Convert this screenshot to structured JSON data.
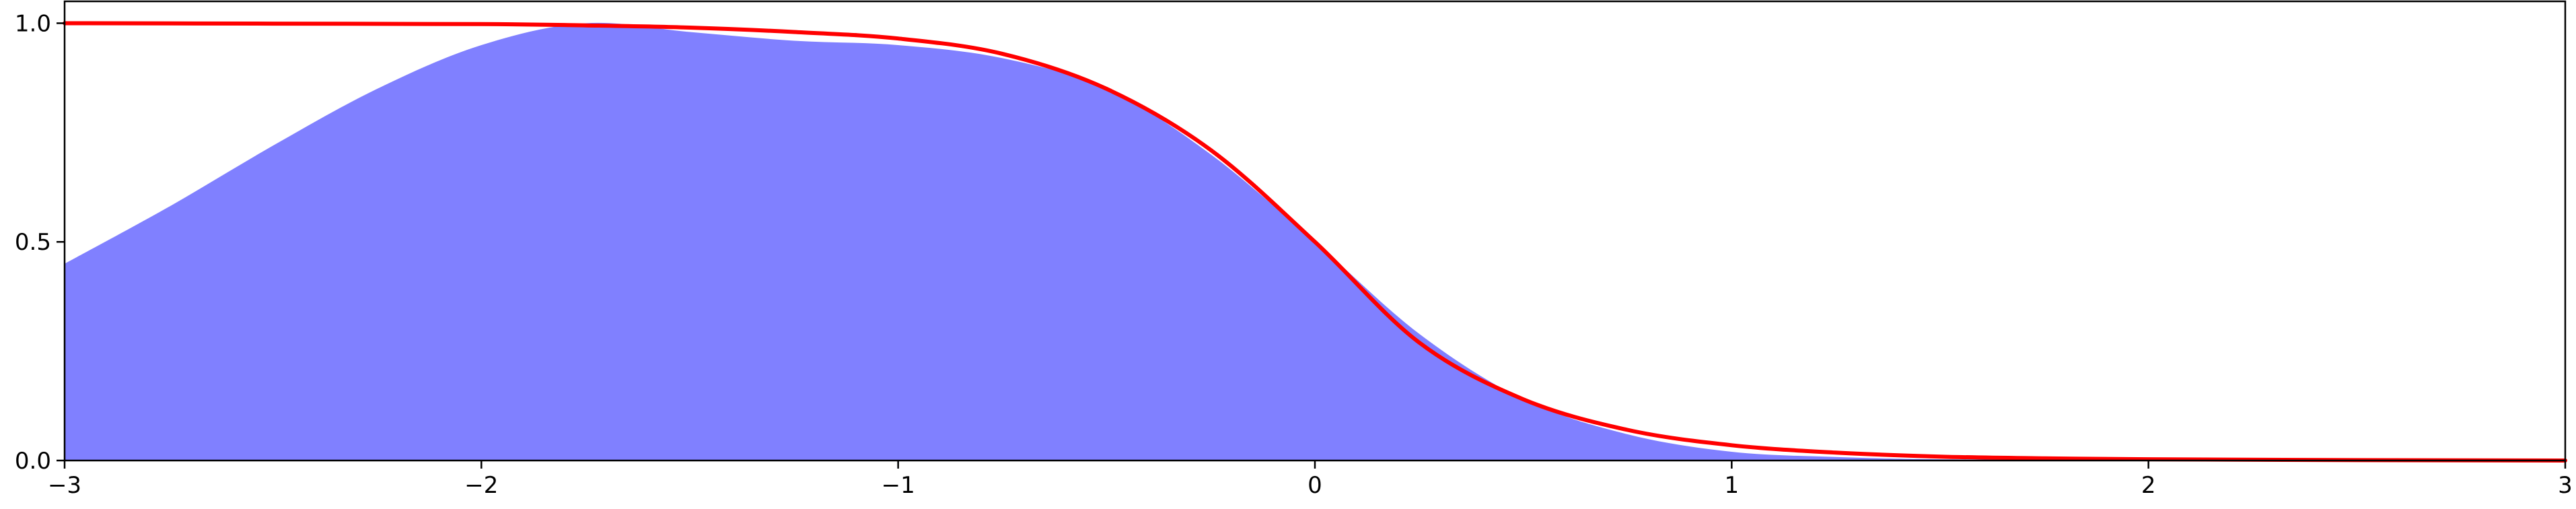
{
  "chart_data": {
    "type": "area",
    "title": "",
    "xlabel": "",
    "ylabel": "",
    "xlim": [
      -3,
      3
    ],
    "ylim": [
      0,
      1.05
    ],
    "grid": false,
    "x_ticks": [
      -3,
      -2,
      -1,
      0,
      1,
      2,
      3
    ],
    "x_tick_labels": [
      "−3",
      "−2",
      "−1",
      "0",
      "1",
      "2",
      "3"
    ],
    "y_ticks": [
      0.0,
      0.5,
      1.0
    ],
    "y_tick_labels": [
      "0.0",
      "0.5",
      "1.0"
    ],
    "series": [
      {
        "kind": "area",
        "color": "#8080ff",
        "x": [
          -3.0,
          -2.75,
          -2.5,
          -2.25,
          -2.0,
          -1.75,
          -1.5,
          -1.25,
          -1.0,
          -0.75,
          -0.5,
          -0.25,
          0.0,
          0.25,
          0.5,
          0.75,
          1.0,
          1.25,
          1.5,
          2.0,
          2.5,
          3.0
        ],
        "y": [
          0.45,
          0.58,
          0.72,
          0.85,
          0.95,
          1.0,
          0.98,
          0.96,
          0.95,
          0.92,
          0.85,
          0.7,
          0.5,
          0.29,
          0.14,
          0.06,
          0.02,
          0.008,
          0.003,
          0.001,
          0.0,
          0.0
        ]
      },
      {
        "kind": "line",
        "color": "#ff0000",
        "x": [
          -3.0,
          -2.5,
          -2.0,
          -1.75,
          -1.5,
          -1.25,
          -1.0,
          -0.75,
          -0.5,
          -0.25,
          0.0,
          0.25,
          0.5,
          0.75,
          1.0,
          1.25,
          1.5,
          1.75,
          2.0,
          2.5,
          3.0
        ],
        "y": [
          1.0,
          0.999,
          0.998,
          0.995,
          0.99,
          0.98,
          0.965,
          0.93,
          0.85,
          0.71,
          0.5,
          0.27,
          0.14,
          0.07,
          0.035,
          0.018,
          0.009,
          0.005,
          0.003,
          0.001,
          0.0
        ]
      }
    ]
  }
}
